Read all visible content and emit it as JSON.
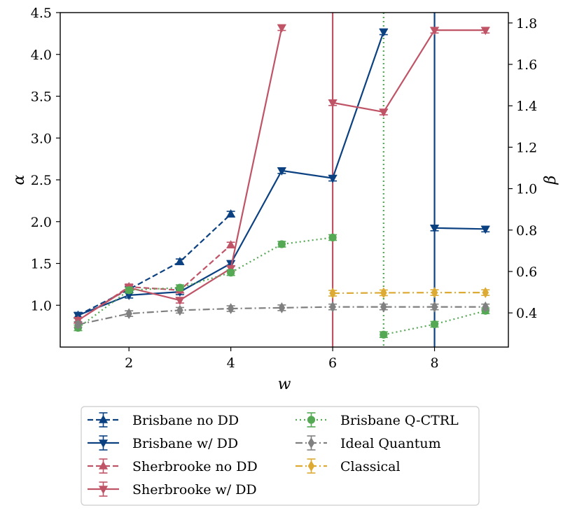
{
  "chart_data": {
    "type": "line",
    "xlabel": "w",
    "ylabel_left": "α",
    "ylabel_right": "β",
    "xlim": [
      0.65,
      9.45
    ],
    "ylim_left": [
      0.5,
      4.5
    ],
    "ylim_right": [
      0.235,
      1.85
    ],
    "xticks": [
      2,
      4,
      6,
      8
    ],
    "xtick_labels": [
      "2",
      "4",
      "6",
      "8"
    ],
    "yticks_left": [
      1.0,
      1.5,
      2.0,
      2.5,
      3.0,
      3.5,
      4.0,
      4.5
    ],
    "ytick_labels_left": [
      "1.0",
      "1.5",
      "2.0",
      "2.5",
      "3.0",
      "3.5",
      "4.0",
      "4.5"
    ],
    "yticks_right": [
      0.4,
      0.6,
      0.8,
      1.0,
      1.2,
      1.4,
      1.6,
      1.8
    ],
    "ytick_labels_right": [
      "0.4",
      "0.6",
      "0.8",
      "1.0",
      "1.2",
      "1.4",
      "1.6",
      "1.8"
    ],
    "legend_position": "bottom-outside",
    "series": [
      {
        "name": "Brisbane no DD",
        "color": "#0b4181",
        "dash": "dashed",
        "marker": "triangle-up",
        "segments": [
          {
            "axis": "left",
            "points": [
              {
                "x": 1,
                "y": 0.88
              },
              {
                "x": 2,
                "y": 1.19
              },
              {
                "x": 3,
                "y": 1.52
              },
              {
                "x": 4,
                "y": 2.09
              }
            ]
          }
        ]
      },
      {
        "name": "Brisbane w/ DD",
        "color": "#0b4181",
        "dash": "solid",
        "marker": "triangle-down",
        "segments": [
          {
            "axis": "left",
            "points": [
              {
                "x": 1,
                "y": 0.88
              },
              {
                "x": 2,
                "y": 1.12
              },
              {
                "x": 3,
                "y": 1.16
              },
              {
                "x": 4,
                "y": 1.5
              },
              {
                "x": 5,
                "y": 2.61
              },
              {
                "x": 6,
                "y": 2.52
              },
              {
                "x": 7,
                "y": 4.27
              }
            ]
          },
          {
            "axis": "right",
            "points": [
              {
                "x": 8,
                "y": 0.81
              },
              {
                "x": 9,
                "y": 0.805
              }
            ]
          }
        ],
        "vline": 8
      },
      {
        "name": "Sherbrooke no DD",
        "color": "#c05467",
        "dash": "dashed",
        "marker": "triangle-up",
        "segments": [
          {
            "axis": "left",
            "points": [
              {
                "x": 1,
                "y": 0.82
              },
              {
                "x": 2,
                "y": 1.22
              },
              {
                "x": 3,
                "y": 1.18
              },
              {
                "x": 4,
                "y": 1.72
              }
            ]
          }
        ]
      },
      {
        "name": "Sherbrooke w/ DD",
        "color": "#c05467",
        "dash": "solid",
        "marker": "triangle-down",
        "segments": [
          {
            "axis": "left",
            "points": [
              {
                "x": 1,
                "y": 0.82
              },
              {
                "x": 2,
                "y": 1.21
              },
              {
                "x": 3,
                "y": 1.06
              },
              {
                "x": 4,
                "y": 1.44
              },
              {
                "x": 5,
                "y": 4.32
              }
            ]
          },
          {
            "axis": "right",
            "points": [
              {
                "x": 6,
                "y": 1.415
              },
              {
                "x": 7,
                "y": 1.37
              },
              {
                "x": 8,
                "y": 1.765
              },
              {
                "x": 9,
                "y": 1.765
              }
            ]
          }
        ],
        "vline": 6
      },
      {
        "name": "Brisbane Q-CTRL",
        "color": "#55a955",
        "dash": "dotted",
        "marker": "circle",
        "segments": [
          {
            "axis": "left",
            "points": [
              {
                "x": 1,
                "y": 0.73
              },
              {
                "x": 2,
                "y": 1.18
              },
              {
                "x": 3,
                "y": 1.21
              },
              {
                "x": 4,
                "y": 1.39
              },
              {
                "x": 5,
                "y": 1.73
              },
              {
                "x": 6,
                "y": 1.81
              }
            ]
          },
          {
            "axis": "right",
            "points": [
              {
                "x": 7,
                "y": 0.295
              },
              {
                "x": 8,
                "y": 0.345
              },
              {
                "x": 9,
                "y": 0.41
              }
            ]
          }
        ],
        "vline": 7
      },
      {
        "name": "Ideal Quantum",
        "color": "#808080",
        "dash": "dashdot",
        "marker": "diamond",
        "segments": [
          {
            "axis": "left",
            "points": [
              {
                "x": 1,
                "y": 0.77
              },
              {
                "x": 2,
                "y": 0.9
              },
              {
                "x": 3,
                "y": 0.94
              },
              {
                "x": 4,
                "y": 0.96
              },
              {
                "x": 5,
                "y": 0.97
              },
              {
                "x": 6,
                "y": 0.98
              },
              {
                "x": 7,
                "y": 0.98
              },
              {
                "x": 8,
                "y": 0.98
              },
              {
                "x": 9,
                "y": 0.98
              }
            ]
          }
        ]
      },
      {
        "name": "Classical",
        "color": "#ddaa33",
        "dash": "dashdot",
        "marker": "diamond",
        "segments": [
          {
            "axis": "right",
            "points": [
              {
                "x": 6,
                "y": 0.495
              },
              {
                "x": 7,
                "y": 0.497
              },
              {
                "x": 8,
                "y": 0.498
              },
              {
                "x": 9,
                "y": 0.498
              }
            ]
          }
        ]
      }
    ]
  }
}
